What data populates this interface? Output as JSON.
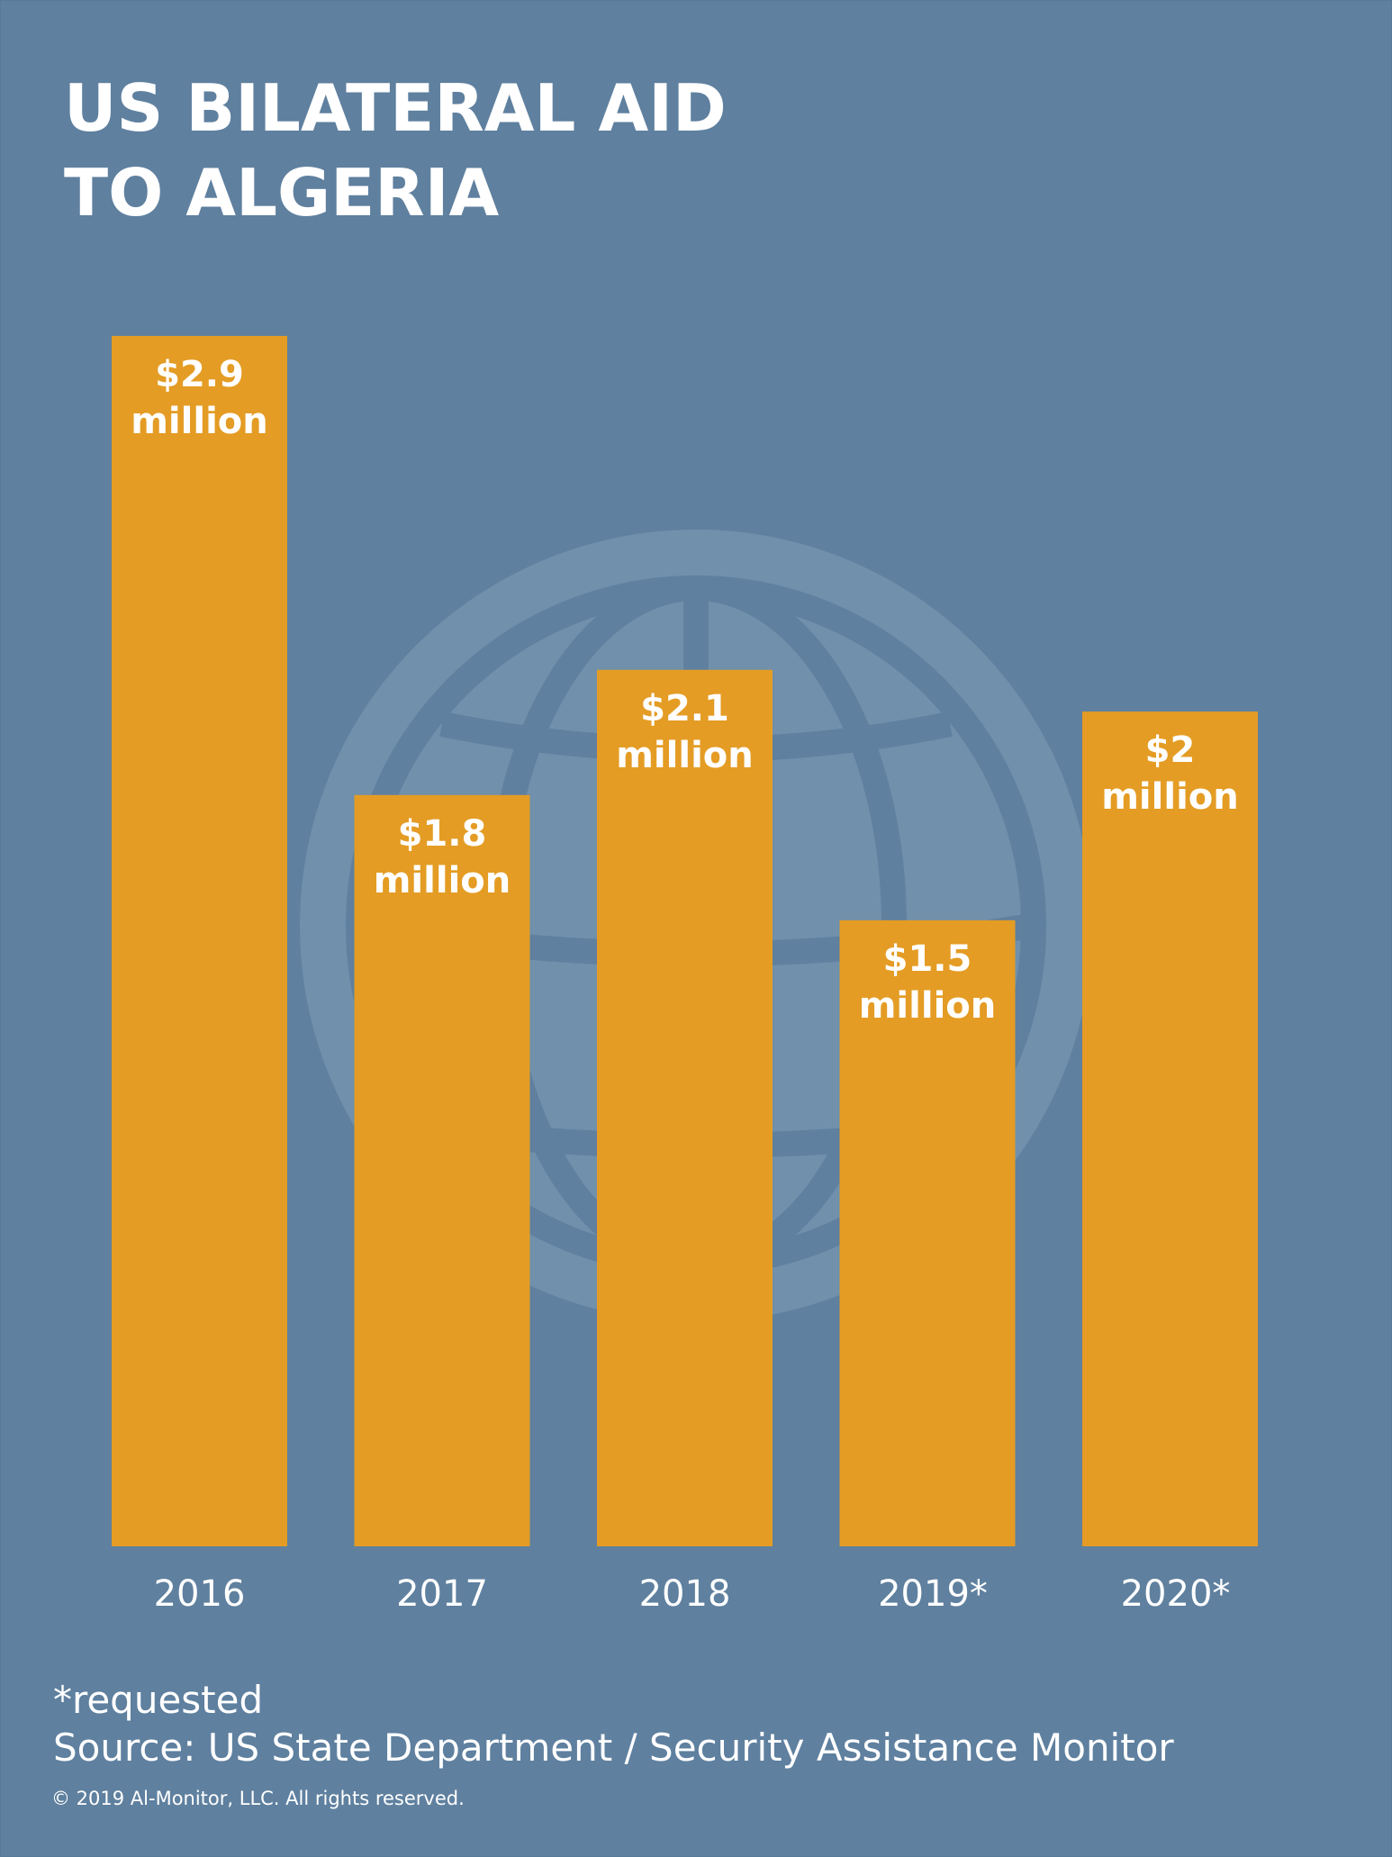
{
  "chart_data": {
    "type": "bar",
    "title": [
      "US BILATERAL AID",
      "TO ALGERIA"
    ],
    "categories": [
      "2016",
      "2017",
      "2018",
      "2019*",
      "2020*"
    ],
    "values": [
      2.9,
      1.8,
      2.1,
      1.5,
      2.0
    ],
    "units": "million USD",
    "data_labels": [
      [
        "$2.9",
        "million"
      ],
      [
        "$1.8",
        "million"
      ],
      [
        "$2.1",
        "million"
      ],
      [
        "$1.5",
        "million"
      ],
      [
        "$2",
        "million"
      ]
    ],
    "ylim": [
      0,
      2.9
    ],
    "grid": false,
    "legend": "none"
  },
  "footnotes": {
    "requested": "*requested",
    "source": "Source: US State Department / Security Assistance Monitor",
    "copyright": "© 2019 Al-Monitor, LLC. All rights reserved."
  },
  "colors": {
    "background": "#5f809f",
    "bar": "#e49c24",
    "globe": "#7090ac",
    "text": "#ffffff"
  },
  "background_icon": "globe-icon"
}
